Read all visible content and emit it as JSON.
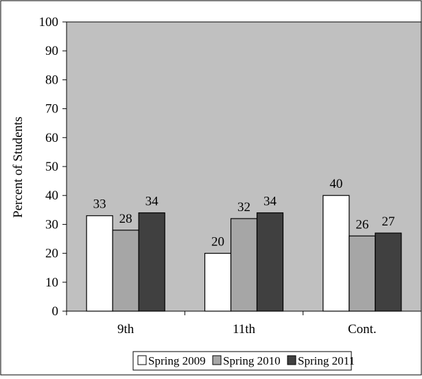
{
  "chart_data": {
    "type": "bar",
    "ylabel": "Percent of Students",
    "xlabel": "",
    "ylim": [
      0,
      100
    ],
    "yticks": [
      0,
      10,
      20,
      30,
      40,
      50,
      60,
      70,
      80,
      90,
      100
    ],
    "categories": [
      "9th",
      "11th",
      "Cont."
    ],
    "series": [
      {
        "name": "Spring 2009",
        "values": [
          33,
          20,
          40
        ],
        "color": "#ffffff"
      },
      {
        "name": "Spring 2010",
        "values": [
          28,
          32,
          26
        ],
        "color": "#a6a6a6"
      },
      {
        "name": "Spring 2011",
        "values": [
          34,
          34,
          27
        ],
        "color": "#404040"
      }
    ],
    "plot_background": "#c0c0c0",
    "grid": false,
    "legend_position": "bottom"
  }
}
